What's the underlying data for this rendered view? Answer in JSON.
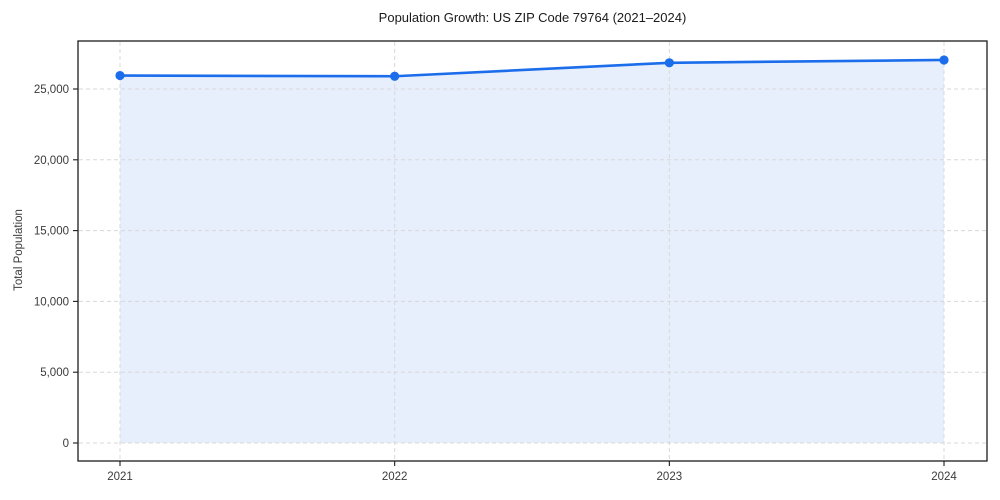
{
  "figure": {
    "background": "#ffffff"
  },
  "chart_data": {
    "type": "line",
    "title": "Population Growth: US ZIP Code 79764 (2021–2024)",
    "xlabel": "",
    "ylabel": "Total Population",
    "categories": [
      "2021",
      "2022",
      "2023",
      "2024"
    ],
    "series": [
      {
        "name": "Total Population",
        "values": [
          25950,
          25900,
          26850,
          27050
        ]
      }
    ],
    "yticks": [
      0,
      5000,
      10000,
      15000,
      20000,
      25000
    ],
    "ytick_labels": [
      "0",
      "5,000",
      "10,000",
      "15,000",
      "20,000",
      "25,000"
    ],
    "ylim": [
      -1300,
      28400
    ],
    "area_fill": true,
    "markers": true,
    "grid": true,
    "grid_style": "dashed",
    "legend_position": "none",
    "colors": {
      "line": "#1b6deb",
      "marker": "#1b6deb",
      "fill": "#e7effc",
      "grid": "#d8d8d8",
      "axis": "#1c1c1c",
      "tick_label": "#3a3a3a",
      "title": "#1a1a1a"
    }
  }
}
